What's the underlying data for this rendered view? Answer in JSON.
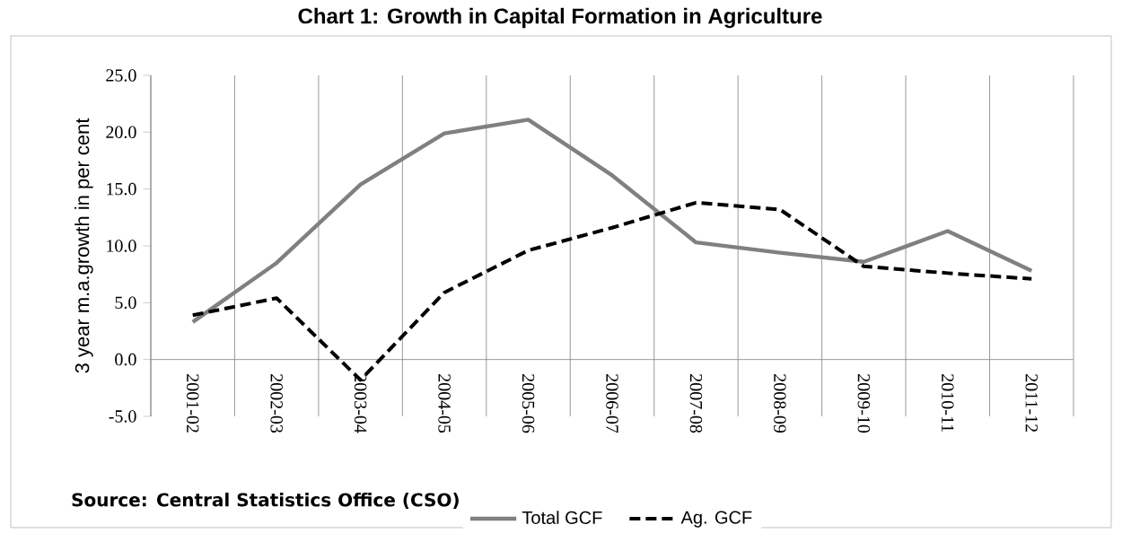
{
  "chart_data": {
    "type": "line",
    "title": "Chart 1: Growth in Capital Formation in Agriculture",
    "ylabel": "3 year m.a.growth in per cent",
    "categories": [
      "2001-02",
      "2002-03",
      "2003-04",
      "2004-05",
      "2005-06",
      "2006-07",
      "2007-08",
      "2008-09",
      "2009-10",
      "2010-11",
      "2011-12"
    ],
    "series": [
      {
        "name": "Total GCF",
        "color": "#808080",
        "line_style": "solid",
        "values": [
          3.3,
          8.5,
          15.4,
          19.9,
          21.1,
          16.2,
          10.3,
          9.4,
          8.6,
          11.3,
          7.8
        ]
      },
      {
        "name": "Ag. GCF",
        "color": "#000000",
        "line_style": "dashed",
        "values": [
          3.9,
          5.4,
          -1.8,
          5.9,
          9.6,
          11.6,
          13.8,
          13.2,
          8.2,
          7.6,
          7.1
        ]
      }
    ],
    "ylim": [
      -5,
      25
    ],
    "yticks": [
      {
        "value": -5,
        "label": "-5.0"
      },
      {
        "value": 0,
        "label": "0.0"
      },
      {
        "value": 5,
        "label": "5.0"
      },
      {
        "value": 10,
        "label": "10.0"
      },
      {
        "value": 15,
        "label": "15.0"
      },
      {
        "value": 20,
        "label": "20.0"
      },
      {
        "value": 25,
        "label": "25.0"
      }
    ],
    "grid": "x",
    "legend": "bottom",
    "marker": "none",
    "annotations": [
      "Source: Central Statistics Office (CSO)"
    ]
  }
}
